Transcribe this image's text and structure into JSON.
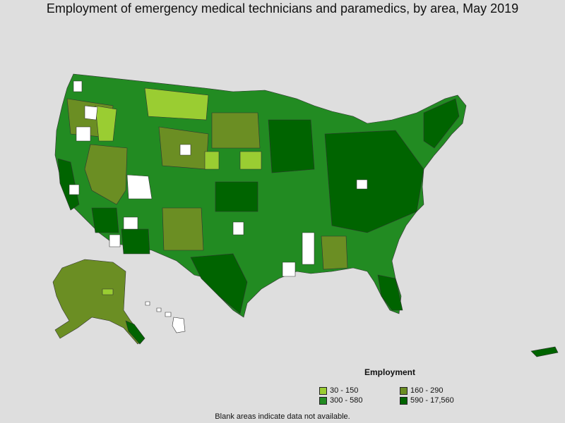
{
  "title": "Employment of emergency medical technicians and paramedics, by area, May 2019",
  "legend": {
    "title": "Employment",
    "items": [
      {
        "label": "30 - 150",
        "color": "#9acd32"
      },
      {
        "label": "160 - 290",
        "color": "#6b8e23"
      },
      {
        "label": "300 - 580",
        "color": "#228b22"
      },
      {
        "label": "590 - 17,560",
        "color": "#006400"
      }
    ]
  },
  "no_data_color": "#ffffff",
  "background_color": "#dedede",
  "footnote": "Blank areas indicate data not available."
}
